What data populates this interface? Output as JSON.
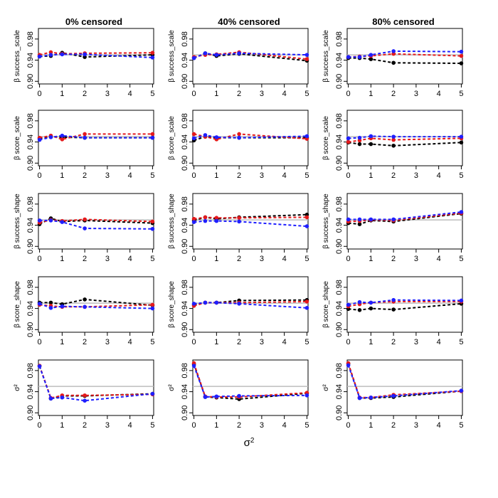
{
  "chart_data": {
    "type": "line",
    "layout": "grid of 5 rows x 3 columns of panels",
    "column_titles": [
      "0% censored",
      "40% censored",
      "80% censored"
    ],
    "row_labels": [
      "β success_scale",
      "β score_scale",
      "β success_shape",
      "β score_shape",
      "σ²"
    ],
    "xlabel": "σ2",
    "x": [
      0,
      0.5,
      1,
      2,
      5
    ],
    "x_ticks": [
      0,
      1,
      2,
      3,
      4,
      5
    ],
    "x_tick_labels": [
      "0",
      "1",
      "2",
      "3",
      "4",
      "5"
    ],
    "xlim": [
      -0.05,
      5.05
    ],
    "ylim": [
      0.895,
      1.0
    ],
    "y_ticks": [
      0.9,
      0.94,
      0.98
    ],
    "y_tick_labels": [
      "0.90",
      "0.94",
      "0.98"
    ],
    "reference_line": 0.95,
    "colors": {
      "black": "#000000",
      "red": "#e41a1c",
      "blue": "#1f1fff",
      "reference": "#bdbdbd"
    },
    "panels": [
      [
        {
          "row": "β success_scale",
          "col": "0% censored",
          "series": [
            {
              "name": "black",
              "values": [
                0.947,
                0.948,
                0.954,
                0.946,
                0.95
              ]
            },
            {
              "name": "red",
              "values": [
                0.95,
                0.955,
                0.952,
                0.953,
                0.954
              ]
            },
            {
              "name": "blue",
              "values": [
                0.947,
                0.95,
                0.951,
                0.951,
                0.945
              ]
            }
          ]
        },
        {
          "row": "β success_scale",
          "col": "40% censored",
          "series": [
            {
              "name": "black",
              "values": [
                0.944,
                0.953,
                0.948,
                0.952,
                0.939
              ]
            },
            {
              "name": "red",
              "values": [
                0.946,
                0.95,
                0.951,
                0.955,
                0.942
              ]
            },
            {
              "name": "blue",
              "values": [
                0.944,
                0.953,
                0.95,
                0.953,
                0.95
              ]
            }
          ]
        },
        {
          "row": "β success_scale",
          "col": "80% censored",
          "series": [
            {
              "name": "black",
              "values": [
                0.944,
                0.944,
                0.942,
                0.935,
                0.934
              ]
            },
            {
              "name": "red",
              "values": [
                0.946,
                0.947,
                0.948,
                0.952,
                0.948
              ]
            },
            {
              "name": "blue",
              "values": [
                0.946,
                0.946,
                0.95,
                0.957,
                0.956
              ]
            }
          ]
        }
      ],
      [
        {
          "row": "β score_scale",
          "col": "0% censored",
          "series": [
            {
              "name": "black",
              "values": [
                0.947,
                0.95,
                0.949,
                0.948,
                0.948
              ]
            },
            {
              "name": "red",
              "values": [
                0.948,
                0.952,
                0.945,
                0.955,
                0.955
              ]
            },
            {
              "name": "blue",
              "values": [
                0.944,
                0.949,
                0.952,
                0.948,
                0.948
              ]
            }
          ]
        },
        {
          "row": "β score_scale",
          "col": "40% censored",
          "series": [
            {
              "name": "black",
              "values": [
                0.943,
                0.95,
                0.948,
                0.948,
                0.948
              ]
            },
            {
              "name": "red",
              "values": [
                0.955,
                0.95,
                0.945,
                0.955,
                0.946
              ]
            },
            {
              "name": "blue",
              "values": [
                0.947,
                0.953,
                0.949,
                0.948,
                0.951
              ]
            }
          ]
        },
        {
          "row": "β score_scale",
          "col": "80% censored",
          "series": [
            {
              "name": "black",
              "values": [
                0.939,
                0.936,
                0.936,
                0.933,
                0.939
              ]
            },
            {
              "name": "red",
              "values": [
                0.94,
                0.943,
                0.947,
                0.944,
                0.947
              ]
            },
            {
              "name": "blue",
              "values": [
                0.947,
                0.948,
                0.951,
                0.95,
                0.95
              ]
            }
          ]
        }
      ],
      [
        {
          "row": "β success_shape",
          "col": "0% censored",
          "series": [
            {
              "name": "black",
              "values": [
                0.942,
                0.953,
                0.947,
                0.949,
                0.944
              ]
            },
            {
              "name": "red",
              "values": [
                0.945,
                0.95,
                0.948,
                0.951,
                0.947
              ]
            },
            {
              "name": "blue",
              "values": [
                0.949,
                0.949,
                0.946,
                0.934,
                0.933
              ]
            }
          ]
        },
        {
          "row": "β success_shape",
          "col": "40% censored",
          "series": [
            {
              "name": "black",
              "values": [
                0.949,
                0.955,
                0.952,
                0.955,
                0.96
              ]
            },
            {
              "name": "red",
              "values": [
                0.952,
                0.955,
                0.954,
                0.954,
                0.955
              ]
            },
            {
              "name": "blue",
              "values": [
                0.946,
                0.948,
                0.948,
                0.947,
                0.938
              ]
            }
          ]
        },
        {
          "row": "β success_shape",
          "col": "80% censored",
          "series": [
            {
              "name": "black",
              "values": [
                0.944,
                0.942,
                0.949,
                0.947,
                0.962
              ]
            },
            {
              "name": "red",
              "values": [
                0.947,
                0.948,
                0.95,
                0.949,
                0.963
              ]
            },
            {
              "name": "blue",
              "values": [
                0.951,
                0.951,
                0.951,
                0.951,
                0.965
              ]
            }
          ]
        }
      ],
      [
        {
          "row": "β score_shape",
          "col": "0% censored",
          "series": [
            {
              "name": "black",
              "values": [
                0.951,
                0.951,
                0.948,
                0.957,
                0.946
              ]
            },
            {
              "name": "red",
              "values": [
                0.947,
                0.945,
                0.943,
                0.943,
                0.947
              ]
            },
            {
              "name": "blue",
              "values": [
                0.949,
                0.941,
                0.944,
                0.943,
                0.94
              ]
            }
          ]
        },
        {
          "row": "β score_shape",
          "col": "40% censored",
          "series": [
            {
              "name": "black",
              "values": [
                0.947,
                0.951,
                0.951,
                0.955,
                0.956
              ]
            },
            {
              "name": "red",
              "values": [
                0.945,
                0.951,
                0.951,
                0.951,
                0.953
              ]
            },
            {
              "name": "blue",
              "values": [
                0.949,
                0.951,
                0.951,
                0.949,
                0.941
              ]
            }
          ]
        },
        {
          "row": "β score_shape",
          "col": "80% censored",
          "series": [
            {
              "name": "black",
              "values": [
                0.939,
                0.937,
                0.94,
                0.938,
                0.949
              ]
            },
            {
              "name": "red",
              "values": [
                0.944,
                0.948,
                0.951,
                0.953,
                0.953
              ]
            },
            {
              "name": "blue",
              "values": [
                0.947,
                0.952,
                0.951,
                0.956,
                0.955
              ]
            }
          ]
        }
      ],
      [
        {
          "row": "σ²",
          "col": "0% censored",
          "series": [
            {
              "name": "black",
              "values": [
                0.989,
                0.927,
                0.932,
                0.932,
                0.936
              ]
            },
            {
              "name": "red",
              "values": [
                0.989,
                0.928,
                0.933,
                0.933,
                0.935
              ]
            },
            {
              "name": "blue",
              "values": [
                0.988,
                0.927,
                0.929,
                0.923,
                0.936
              ]
            }
          ]
        },
        {
          "row": "σ²",
          "col": "40% censored",
          "series": [
            {
              "name": "black",
              "values": [
                0.992,
                0.93,
                0.929,
                0.926,
                0.937
              ]
            },
            {
              "name": "red",
              "values": [
                0.994,
                0.931,
                0.93,
                0.93,
                0.938
              ]
            },
            {
              "name": "blue",
              "values": [
                0.989,
                0.93,
                0.931,
                0.932,
                0.933
              ]
            }
          ]
        },
        {
          "row": "σ²",
          "col": "80% censored",
          "series": [
            {
              "name": "black",
              "values": [
                0.993,
                0.928,
                0.928,
                0.93,
                0.941
              ]
            },
            {
              "name": "red",
              "values": [
                0.994,
                0.929,
                0.929,
                0.934,
                0.941
              ]
            },
            {
              "name": "blue",
              "values": [
                0.99,
                0.928,
                0.929,
                0.932,
                0.942
              ]
            }
          ]
        }
      ]
    ]
  }
}
